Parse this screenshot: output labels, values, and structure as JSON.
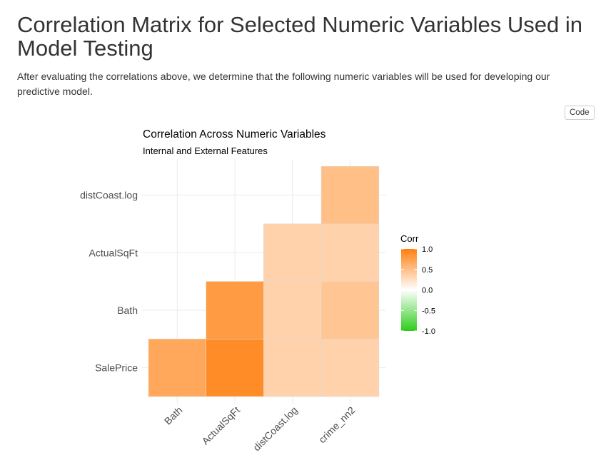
{
  "page": {
    "title": "Correlation Matrix for Selected Numeric Variables Used in Model Testing",
    "intro": "After evaluating the correlations above, we determine that the following numeric variables will be used for developing our predictive model.",
    "code_button": "Code"
  },
  "chart_data": {
    "type": "heatmap",
    "title": "Correlation Across Numeric Variables",
    "subtitle": "Internal and External Features",
    "xlabel": "",
    "ylabel": "",
    "x_categories": [
      "Bath",
      "ActualSqFt",
      "distCoast.log",
      "crime_nn2"
    ],
    "y_categories": [
      "SalePrice",
      "Bath",
      "ActualSqFt",
      "distCoast.log"
    ],
    "cells": [
      {
        "x": "Bath",
        "y": "SalePrice",
        "value": 0.68
      },
      {
        "x": "ActualSqFt",
        "y": "SalePrice",
        "value": 0.9
      },
      {
        "x": "distCoast.log",
        "y": "SalePrice",
        "value": 0.35
      },
      {
        "x": "crime_nn2",
        "y": "SalePrice",
        "value": 0.35
      },
      {
        "x": "ActualSqFt",
        "y": "Bath",
        "value": 0.78
      },
      {
        "x": "distCoast.log",
        "y": "Bath",
        "value": 0.35
      },
      {
        "x": "crime_nn2",
        "y": "Bath",
        "value": 0.45
      },
      {
        "x": "distCoast.log",
        "y": "ActualSqFt",
        "value": 0.35
      },
      {
        "x": "crime_nn2",
        "y": "ActualSqFt",
        "value": 0.35
      },
      {
        "x": "crime_nn2",
        "y": "distCoast.log",
        "value": 0.5
      }
    ],
    "legend": {
      "title": "Corr",
      "ticks": [
        "1.0",
        "0.5",
        "0.0",
        "-0.5",
        "-1.0"
      ],
      "tick_values": [
        1.0,
        0.5,
        0.0,
        -0.5,
        -1.0
      ],
      "range": [
        -1,
        1
      ],
      "colors": {
        "high": "#ff7f0e",
        "mid": "#ffffff",
        "low": "#2ecc1a"
      }
    },
    "grid": true,
    "legend_position": "right"
  }
}
